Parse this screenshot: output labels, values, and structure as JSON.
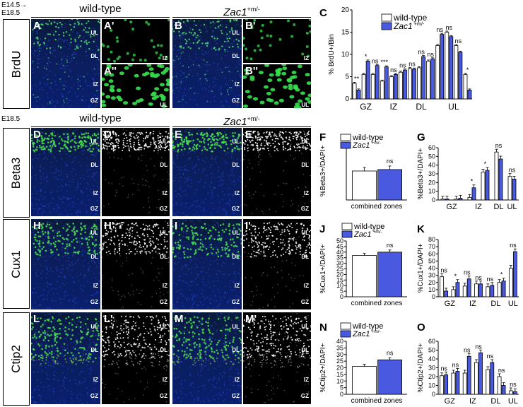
{
  "timeline": {
    "line1": "E14.5→",
    "line2": "E18.5",
    "age2": "E18.5"
  },
  "headers": {
    "wt": "wild-type",
    "zac_prefix": "Zac1",
    "zac_sup": "+m/-"
  },
  "rows": [
    "BrdU",
    "Beta3",
    "Cux1",
    "Ctip2"
  ],
  "panels": [
    {
      "letter": "A",
      "zones": [
        "UL",
        "DL",
        "IZ",
        "GZ"
      ]
    },
    {
      "letter": "A'",
      "zones": [
        "IZ"
      ]
    },
    {
      "letter": "A''",
      "zones": [
        "UL"
      ]
    },
    {
      "letter": "B",
      "zones": [
        "UL",
        "DL",
        "IZ",
        "GZ"
      ]
    },
    {
      "letter": "B'",
      "zones": [
        "IZ"
      ]
    },
    {
      "letter": "B''",
      "zones": [
        "UL"
      ]
    },
    {
      "letter": "D",
      "zones": [
        "UL",
        "DL",
        "IZ",
        "GZ"
      ]
    },
    {
      "letter": "D'",
      "zones": [
        "UL",
        "DL",
        "IZ",
        "GZ"
      ]
    },
    {
      "letter": "E",
      "zones": [
        "UL",
        "DL",
        "IZ",
        "GZ"
      ]
    },
    {
      "letter": "E'",
      "zones": [
        "UL",
        "DL",
        "IZ",
        "GZ"
      ]
    },
    {
      "letter": "H",
      "zones": [
        "UL",
        "DL",
        "IZ",
        "GZ"
      ]
    },
    {
      "letter": "H'",
      "zones": [
        "UL",
        "DL",
        "IZ",
        "GZ"
      ]
    },
    {
      "letter": "I",
      "zones": [
        "UL",
        "DL",
        "IZ",
        "GZ"
      ]
    },
    {
      "letter": "I'",
      "zones": [
        "UL",
        "DL",
        "IZ",
        "GZ"
      ]
    },
    {
      "letter": "L",
      "zones": [
        "UL",
        "DL",
        "IZ",
        "GZ"
      ]
    },
    {
      "letter": "L'",
      "zones": [
        "UL",
        "DL",
        "IZ",
        "GZ"
      ]
    },
    {
      "letter": "M",
      "zones": [
        "UL",
        "DL",
        "IZ",
        "GZ"
      ]
    },
    {
      "letter": "M'",
      "zones": [
        "UL",
        "DL",
        "IZ",
        "GZ"
      ]
    }
  ],
  "legend": {
    "wt": "wild-type",
    "zac": "Zac1",
    "zac_sup": "+m/-"
  },
  "colors": {
    "wt": "#ffffff",
    "zac": "#4a5ae0"
  },
  "chart_data": [
    {
      "letter": "C",
      "type": "bar",
      "ylabel": "% BrdU+/Bin",
      "ylim": [
        0,
        20
      ],
      "yticks": [
        0,
        5,
        10,
        15,
        20
      ],
      "group_labels": [
        "GZ",
        "IZ",
        "DL",
        "UL"
      ],
      "series": [
        {
          "name": "wild-type"
        },
        {
          "name": "Zac1+m/-"
        }
      ],
      "pairs": [
        [
          3.5,
          2.0
        ],
        [
          5.5,
          8.5
        ],
        [
          5.5,
          7.5
        ],
        [
          4.0,
          7.2
        ],
        [
          5.0,
          5.5
        ],
        [
          6.0,
          6.5
        ],
        [
          6.8,
          6.7
        ],
        [
          7.0,
          9.5
        ],
        [
          8.5,
          9.0
        ],
        [
          12.0,
          14.5
        ],
        [
          15.0,
          14.0
        ],
        [
          12.0,
          10.5
        ],
        [
          5.5,
          2.0
        ]
      ],
      "group_of": [
        0,
        0,
        0,
        1,
        1,
        1,
        2,
        2,
        2,
        3,
        3,
        3,
        3
      ],
      "sig": [
        "**",
        "*",
        "ns",
        "***",
        "ns",
        "ns",
        "ns",
        "ns",
        "ns",
        "ns",
        "ns",
        "ns",
        "*"
      ],
      "legend": "top-right"
    },
    {
      "letter": "F",
      "type": "bar",
      "ylabel": "%Beta3+/DAPI+",
      "ylim": [
        0,
        40
      ],
      "xlabel": "combined zones",
      "values": [
        20.0,
        21.0
      ],
      "sig": "ns",
      "legend": "top"
    },
    {
      "letter": "G",
      "type": "bar",
      "ylabel": "%Beta3+/DAPI+",
      "ylim": [
        0,
        60
      ],
      "yticks": [
        0,
        10,
        20,
        30,
        40,
        50,
        60
      ],
      "group_labels": [
        "GZ",
        "IZ",
        "DL",
        "UL"
      ],
      "pairs": [
        [
          1,
          1
        ],
        [
          1,
          2
        ],
        [
          3,
          14
        ],
        [
          32,
          34
        ],
        [
          55,
          47
        ],
        [
          27,
          24
        ]
      ],
      "group_of": [
        0,
        0,
        1,
        1,
        2,
        3
      ],
      "sig": [
        "",
        "",
        "*",
        "*",
        "ns",
        "ns"
      ]
    },
    {
      "letter": "J",
      "type": "bar",
      "ylabel": "%Cux1+/DAPI+",
      "ylim": [
        0,
        50
      ],
      "yticks": [
        0,
        5,
        10,
        15,
        20,
        25,
        30,
        35,
        40,
        45,
        50
      ],
      "xlabel": "combined zones",
      "values": [
        37.0,
        40.0
      ],
      "sig": "ns",
      "legend": "top"
    },
    {
      "letter": "K",
      "type": "bar",
      "ylabel": "%Cux1+/DAPI+",
      "ylim": [
        0,
        80
      ],
      "yticks": [
        0,
        10,
        20,
        30,
        40,
        50,
        60,
        70,
        80
      ],
      "group_labels": [
        "GZ",
        "IZ",
        "DL",
        "UL"
      ],
      "pairs": [
        [
          28,
          8
        ],
        [
          10,
          20
        ],
        [
          15,
          25
        ],
        [
          18,
          18
        ],
        [
          14,
          16
        ],
        [
          20,
          22
        ],
        [
          40,
          63
        ]
      ],
      "group_of": [
        0,
        0,
        1,
        1,
        2,
        2,
        3
      ],
      "sig": [
        "ns",
        "*",
        "ns",
        "ns",
        "ns",
        "*",
        "ns"
      ]
    },
    {
      "letter": "N",
      "type": "bar",
      "ylabel": "%Ctip2+/DAPI+",
      "ylim": [
        0,
        40
      ],
      "yticks": [
        0,
        5,
        10,
        15,
        20,
        25,
        30,
        35,
        40
      ],
      "xlabel": "combined zones",
      "values": [
        21.0,
        26.0
      ],
      "sig": "ns",
      "legend": "top"
    },
    {
      "letter": "O",
      "type": "bar",
      "ylabel": "%Ctip2+/DAPI+",
      "ylim": [
        0,
        60
      ],
      "yticks": [
        0,
        10,
        20,
        30,
        40,
        50,
        60
      ],
      "group_labels": [
        "GZ",
        "IZ",
        "DL",
        "UL"
      ],
      "pairs": [
        [
          21,
          22
        ],
        [
          24,
          26
        ],
        [
          24,
          43
        ],
        [
          36,
          47
        ],
        [
          28,
          36
        ],
        [
          20,
          10
        ],
        [
          4,
          3
        ]
      ],
      "group_of": [
        0,
        0,
        1,
        1,
        2,
        2,
        3
      ],
      "sig": [
        "ns",
        "ns",
        "ns",
        "ns",
        "ns",
        "ns",
        "ns"
      ]
    }
  ]
}
